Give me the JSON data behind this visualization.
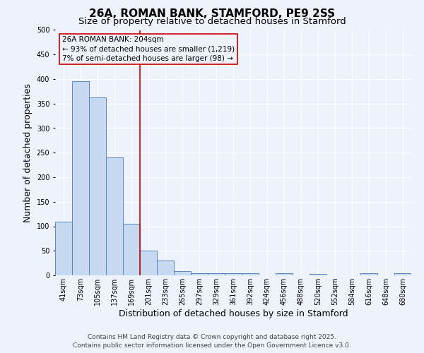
{
  "title": "26A, ROMAN BANK, STAMFORD, PE9 2SS",
  "subtitle": "Size of property relative to detached houses in Stamford",
  "xlabel": "Distribution of detached houses by size in Stamford",
  "ylabel": "Number of detached properties",
  "categories": [
    "41sqm",
    "73sqm",
    "105sqm",
    "137sqm",
    "169sqm",
    "201sqm",
    "233sqm",
    "265sqm",
    "297sqm",
    "329sqm",
    "361sqm",
    "392sqm",
    "424sqm",
    "456sqm",
    "488sqm",
    "520sqm",
    "552sqm",
    "584sqm",
    "616sqm",
    "648sqm",
    "680sqm"
  ],
  "values": [
    110,
    395,
    362,
    240,
    105,
    50,
    30,
    8,
    5,
    5,
    5,
    5,
    0,
    4,
    0,
    3,
    0,
    0,
    4,
    0,
    4
  ],
  "bar_color": "#c6d9f0",
  "bar_edge_color": "#5b87c5",
  "vline_x_index": 5,
  "vline_color": "#cc0000",
  "ylim": [
    0,
    500
  ],
  "yticks": [
    0,
    50,
    100,
    150,
    200,
    250,
    300,
    350,
    400,
    450,
    500
  ],
  "annotation_line1": "26A ROMAN BANK: 204sqm",
  "annotation_line2": "← 93% of detached houses are smaller (1,219)",
  "annotation_line3": "7% of semi-detached houses are larger (98) →",
  "annotation_box_color": "#cc0000",
  "footer_line1": "Contains HM Land Registry data © Crown copyright and database right 2025.",
  "footer_line2": "Contains public sector information licensed under the Open Government Licence v3.0.",
  "background_color": "#eef2fb",
  "grid_color": "#ffffff",
  "title_fontsize": 11,
  "subtitle_fontsize": 9.5,
  "axis_label_fontsize": 9,
  "tick_fontsize": 7,
  "annotation_fontsize": 7.5,
  "footer_fontsize": 6.5
}
